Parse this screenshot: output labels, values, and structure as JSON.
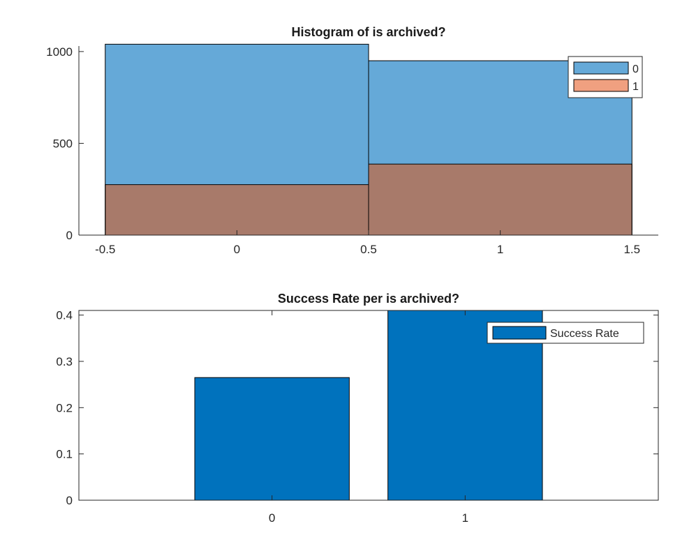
{
  "chart_data": [
    {
      "type": "bar",
      "subtype": "overlapping-histogram",
      "title": "Histogram of is archived?",
      "xlabel": "",
      "ylabel": "",
      "bin_edges": [
        -0.5,
        0.5,
        1.5
      ],
      "xlim": [
        -0.6,
        1.6
      ],
      "ylim": [
        0,
        1030
      ],
      "xticks": [
        "-0.5",
        "0",
        "0.5",
        "1",
        "1.5"
      ],
      "yticks": [
        "0",
        "500",
        "1000"
      ],
      "series": [
        {
          "name": "0",
          "values": [
            1040,
            950
          ],
          "color": "#65a9d8"
        },
        {
          "name": "1",
          "values": [
            275,
            387
          ],
          "color": "#f0a080"
        }
      ],
      "overlap_color": "#a87a6a",
      "legend_position": "top-right",
      "grid": false
    },
    {
      "type": "bar",
      "title": "Success Rate per is archived?",
      "xlabel": "",
      "ylabel": "",
      "categories": [
        "0",
        "1"
      ],
      "series": [
        {
          "name": "Success Rate",
          "values": [
            0.265,
            0.41
          ],
          "color": "#0072bd"
        }
      ],
      "xlim": [
        -1.0,
        2.0
      ],
      "ylim": [
        0,
        0.41
      ],
      "yticks": [
        "0",
        "0.1",
        "0.2",
        "0.3",
        "0.4"
      ],
      "legend_position": "top-right",
      "grid": false
    }
  ]
}
